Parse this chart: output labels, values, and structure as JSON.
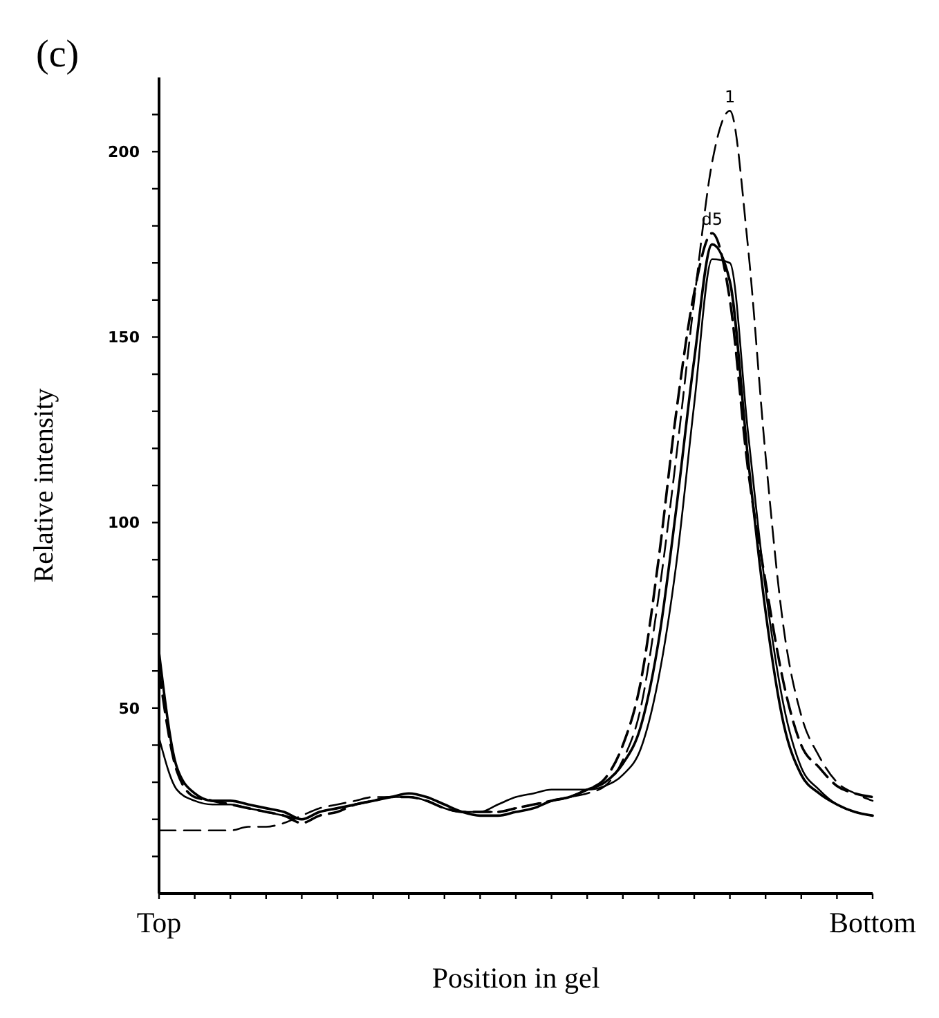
{
  "chart_data": {
    "type": "line",
    "title": "(c)",
    "xlabel": "Position in gel",
    "ylabel": "Relative intensity",
    "categories": [
      "Top",
      null,
      null,
      null,
      null,
      null,
      null,
      null,
      null,
      null,
      null,
      null,
      null,
      null,
      null,
      null,
      null,
      null,
      null,
      null,
      null,
      null,
      null,
      null,
      null,
      null,
      null,
      null,
      null,
      null,
      null,
      null,
      null,
      null,
      null,
      null,
      null,
      null,
      null,
      null,
      "Bottom"
    ],
    "series": [
      {
        "color": "#000000",
        "line_style": "dashed",
        "values": [
          17,
          17,
          17,
          17,
          17,
          18,
          18,
          19,
          21,
          23,
          24,
          25,
          26,
          26,
          26,
          25,
          23,
          22,
          22,
          22,
          23,
          24,
          25,
          26,
          27,
          29,
          36,
          50,
          80,
          118,
          160,
          197,
          211,
          175,
          118,
          72,
          48,
          37,
          30,
          27,
          25
        ]
      },
      {
        "color": "#000000",
        "line_style": "solid",
        "values": [
          65,
          34,
          27,
          25,
          25,
          24,
          23,
          22,
          20,
          22,
          23,
          24,
          25,
          26,
          27,
          26,
          24,
          22,
          21,
          21,
          22,
          23,
          25,
          26,
          28,
          30,
          35,
          45,
          68,
          104,
          144,
          175,
          165,
          118,
          76,
          46,
          32,
          27,
          24,
          22,
          21
        ]
      },
      {
        "color": "#000000",
        "line_style": "solid",
        "values": [
          42,
          28,
          25,
          24,
          24,
          23,
          22,
          21,
          20,
          22,
          23,
          24,
          25,
          26,
          26,
          25,
          23,
          22,
          22,
          24,
          26,
          27,
          28,
          28,
          28,
          29,
          32,
          39,
          58,
          89,
          132,
          171,
          170,
          125,
          82,
          51,
          34,
          28,
          24,
          22,
          21
        ]
      },
      {
        "color": "#000000",
        "line_style": "dashed",
        "values": [
          60,
          33,
          26,
          25,
          24,
          23,
          22,
          21,
          19,
          21,
          22,
          24,
          25,
          26,
          26,
          25,
          23,
          22,
          22,
          22,
          23,
          24,
          25,
          26,
          28,
          31,
          40,
          57,
          90,
          130,
          162,
          178,
          160,
          115,
          84,
          57,
          40,
          34,
          29,
          27,
          26
        ]
      }
    ],
    "ylim": [
      0,
      220
    ],
    "yticks": [
      {
        "value": 10,
        "label": null
      },
      {
        "value": 20,
        "label": null
      },
      {
        "value": 30,
        "label": null
      },
      {
        "value": 40,
        "label": null
      },
      50,
      {
        "value": 60,
        "label": null
      },
      {
        "value": 70,
        "label": null
      },
      {
        "value": 80,
        "label": null
      },
      {
        "value": 90,
        "label": null
      },
      100,
      {
        "value": 110,
        "label": null
      },
      {
        "value": 120,
        "label": null
      },
      {
        "value": 130,
        "label": null
      },
      {
        "value": 140,
        "label": null
      },
      150,
      {
        "value": 160,
        "label": null
      },
      {
        "value": 170,
        "label": null
      },
      {
        "value": 180,
        "label": null
      },
      {
        "value": 190,
        "label": null
      },
      200,
      {
        "value": 210,
        "label": null
      }
    ],
    "annotations": [
      {
        "text": "1",
        "y": 211
      },
      {
        "text": "d5",
        "y": 178
      }
    ],
    "grid": false
  }
}
